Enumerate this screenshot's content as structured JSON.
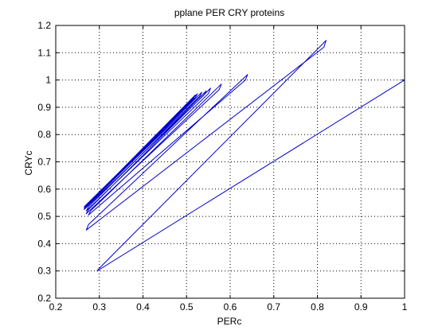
{
  "chart_data": {
    "type": "line",
    "title": "pplane PER CRY proteins",
    "xlabel": "PERc",
    "ylabel": "CRYc",
    "xlim": [
      0.2,
      1.0
    ],
    "ylim": [
      0.2,
      1.2
    ],
    "x_ticks": [
      "0.2",
      "0.3",
      "0.4",
      "0.5",
      "0.6",
      "0.7",
      "0.8",
      "0.9",
      "1"
    ],
    "y_ticks": [
      "0.2",
      "0.3",
      "0.4",
      "0.5",
      "0.6",
      "0.7",
      "0.8",
      "0.9",
      "1",
      "1.1",
      "1.2"
    ],
    "grid": "dotted",
    "line_color": "#0000cc",
    "series": [
      {
        "x": [
          1.0,
          0.295,
          0.3,
          0.82,
          0.815,
          0.27,
          0.275,
          0.64,
          0.635,
          0.275,
          0.28,
          0.58,
          0.575,
          0.27,
          0.275,
          0.555,
          0.55,
          0.27,
          0.275,
          0.545,
          0.54,
          0.265,
          0.27,
          0.535,
          0.53,
          0.265,
          0.27,
          0.525,
          0.52,
          0.265,
          0.27,
          0.52,
          0.515,
          0.265
        ],
        "y": [
          1.0,
          0.3,
          0.31,
          1.145,
          1.12,
          0.45,
          0.47,
          1.02,
          1.0,
          0.505,
          0.52,
          0.985,
          0.965,
          0.51,
          0.525,
          0.97,
          0.95,
          0.52,
          0.535,
          0.96,
          0.945,
          0.525,
          0.535,
          0.955,
          0.94,
          0.53,
          0.54,
          0.95,
          0.935,
          0.53,
          0.54,
          0.945,
          0.93,
          0.535
        ]
      }
    ]
  }
}
